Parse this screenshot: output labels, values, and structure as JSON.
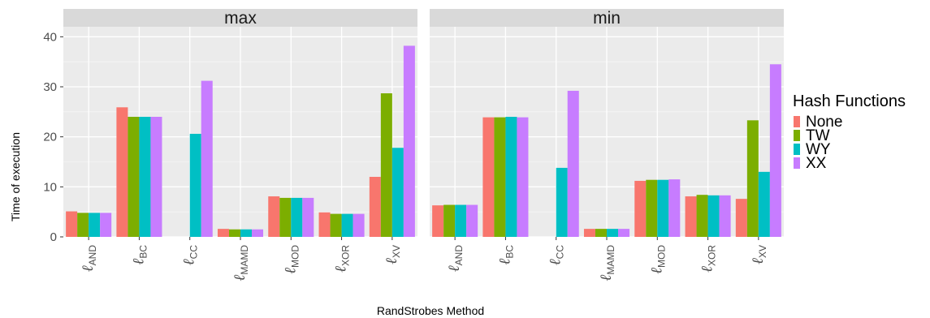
{
  "chart_data": {
    "type": "bar",
    "xlabel": "RandStrobes Method",
    "ylabel": "Time of execution",
    "ylim": [
      0,
      42
    ],
    "yticks": [
      0,
      10,
      20,
      30,
      40
    ],
    "grid": true,
    "legend_position": "right",
    "legend_title": "Hash Functions",
    "categories": [
      {
        "main": "ℓ",
        "sub": "AND"
      },
      {
        "main": "ℓ",
        "sub": "BC"
      },
      {
        "main": "ℓ",
        "sub": "CC"
      },
      {
        "main": "ℓ",
        "sub": "MAMD"
      },
      {
        "main": "ℓ",
        "sub": "MOD"
      },
      {
        "main": "ℓ",
        "sub": "XOR"
      },
      {
        "main": "ℓ",
        "sub": "XV"
      }
    ],
    "series_colors": {
      "None": "#F8766D",
      "TW": "#7CAE00",
      "WY": "#00BFC4",
      "XX": "#C77CFF"
    },
    "panels": [
      {
        "title": "max",
        "series": [
          {
            "name": "None",
            "values": [
              5.1,
              25.9,
              null,
              1.6,
              8.1,
              4.9,
              12.0
            ]
          },
          {
            "name": "TW",
            "values": [
              4.8,
              24.0,
              null,
              1.5,
              7.8,
              4.6,
              28.7
            ]
          },
          {
            "name": "WY",
            "values": [
              4.8,
              24.0,
              20.6,
              1.5,
              7.8,
              4.6,
              17.8
            ]
          },
          {
            "name": "XX",
            "values": [
              4.8,
              24.0,
              31.2,
              1.5,
              7.8,
              4.6,
              38.2
            ]
          }
        ]
      },
      {
        "title": "min",
        "series": [
          {
            "name": "None",
            "values": [
              6.3,
              23.9,
              null,
              1.6,
              11.2,
              8.1,
              7.6
            ]
          },
          {
            "name": "TW",
            "values": [
              6.4,
              23.9,
              null,
              1.6,
              11.4,
              8.4,
              23.3
            ]
          },
          {
            "name": "WY",
            "values": [
              6.4,
              24.0,
              13.8,
              1.6,
              11.4,
              8.3,
              13.0
            ]
          },
          {
            "name": "XX",
            "values": [
              6.4,
              23.9,
              29.2,
              1.6,
              11.5,
              8.3,
              34.5
            ]
          }
        ]
      }
    ]
  }
}
